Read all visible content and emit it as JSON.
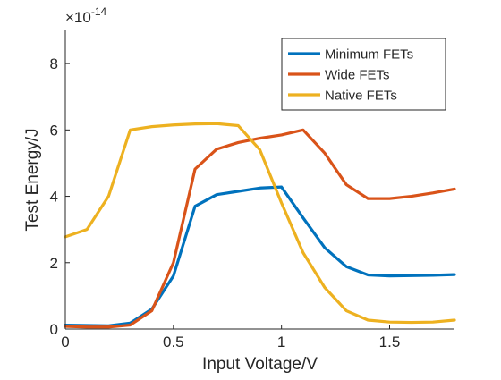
{
  "chart_data": {
    "type": "line",
    "title": "",
    "xlabel": "Input Voltage/V",
    "ylabel": "Test Energy/J",
    "xlim": [
      0,
      1.8
    ],
    "ylim": [
      0,
      9
    ],
    "exponent_label": "×10",
    "exponent_power": "-14",
    "x_ticks": [
      0,
      0.5,
      1,
      1.5
    ],
    "x_tick_labels": [
      "0",
      "0.5",
      "1",
      "1.5"
    ],
    "y_ticks": [
      0,
      2,
      4,
      6,
      8
    ],
    "y_tick_labels": [
      "0",
      "2",
      "4",
      "6",
      "8"
    ],
    "grid": false,
    "legend_position": "top-right",
    "x": [
      0,
      0.1,
      0.2,
      0.3,
      0.4,
      0.5,
      0.6,
      0.7,
      0.8,
      0.9,
      1.0,
      1.1,
      1.2,
      1.3,
      1.4,
      1.5,
      1.6,
      1.7,
      1.8
    ],
    "series": [
      {
        "name": "Minimum FETs",
        "color": "#0072BD",
        "values": [
          0.12,
          0.11,
          0.1,
          0.18,
          0.6,
          1.6,
          3.7,
          4.05,
          4.15,
          4.25,
          4.28,
          3.35,
          2.45,
          1.88,
          1.63,
          1.6,
          1.61,
          1.62,
          1.64
        ]
      },
      {
        "name": "Wide FETs",
        "color": "#D95319",
        "values": [
          0.08,
          0.06,
          0.06,
          0.12,
          0.55,
          2.0,
          4.82,
          5.42,
          5.62,
          5.75,
          5.85,
          6.0,
          5.3,
          4.35,
          3.93,
          3.93,
          4.0,
          4.1,
          4.22
        ]
      },
      {
        "name": "Native FETs",
        "color": "#EDB120",
        "values": [
          2.78,
          3.0,
          4.0,
          6.0,
          6.1,
          6.15,
          6.18,
          6.19,
          6.13,
          5.4,
          3.8,
          2.3,
          1.25,
          0.55,
          0.27,
          0.21,
          0.2,
          0.21,
          0.27
        ]
      }
    ]
  }
}
